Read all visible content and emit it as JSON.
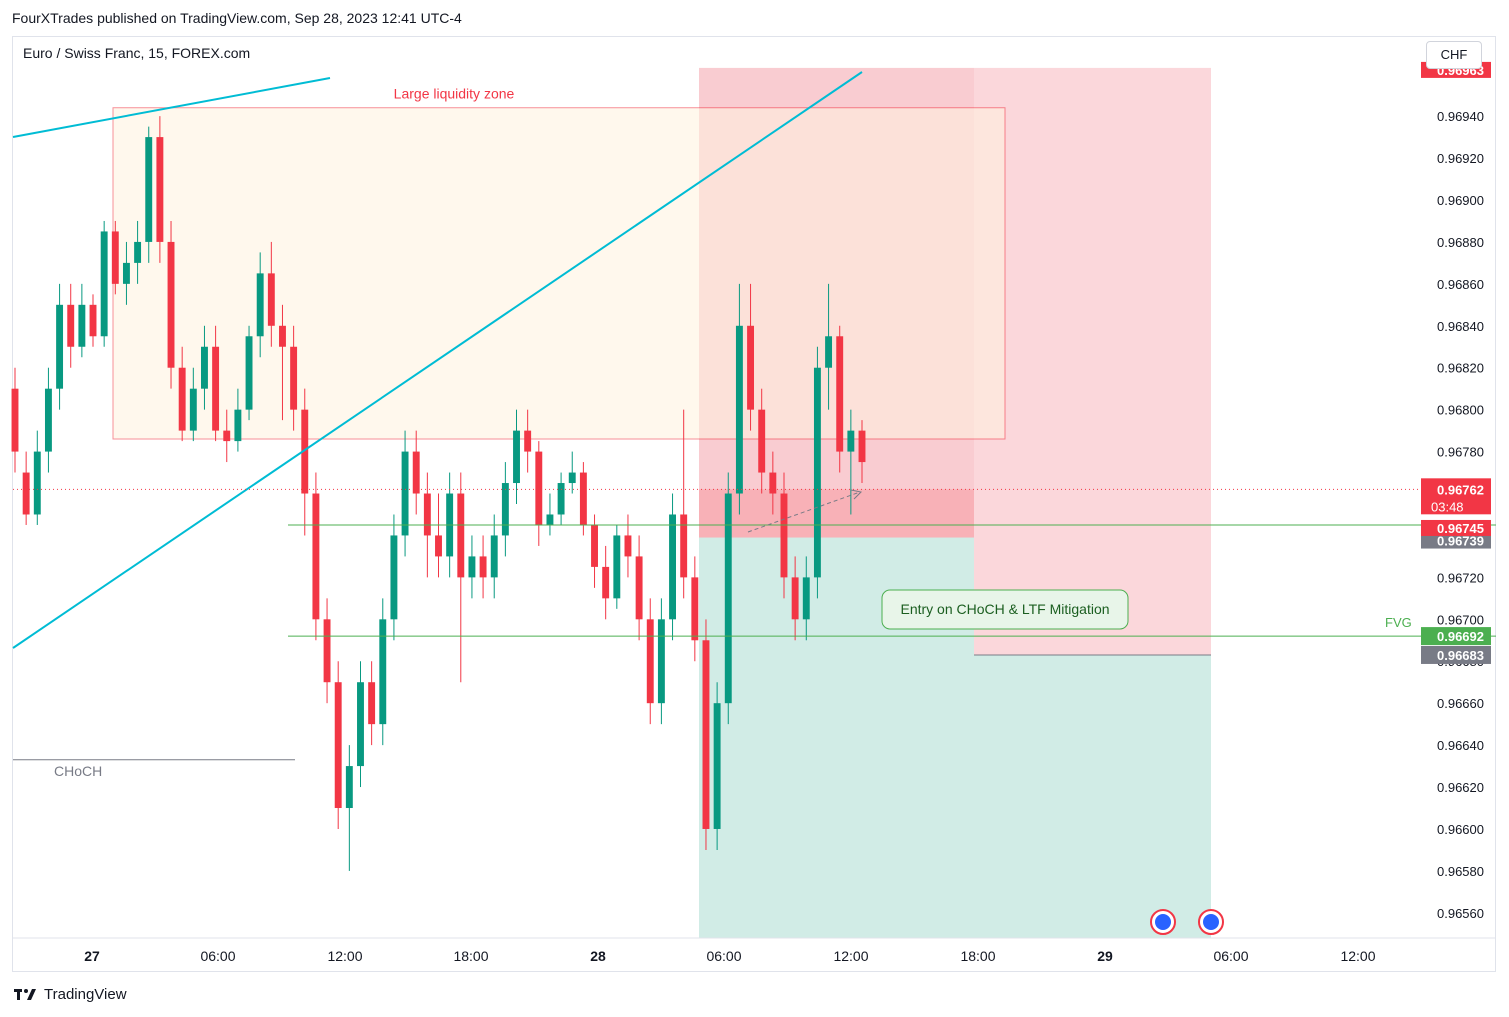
{
  "header": {
    "published": "FourXTrades published on TradingView.com, Sep 28, 2023 12:41 UTC-4",
    "symbol": "Euro / Swiss Franc, 15, FOREX.com",
    "currency": "CHF"
  },
  "footer": {
    "logo_icon": "tradingview-logo-icon",
    "brand": "TradingView"
  },
  "colors": {
    "up": "#089981",
    "down": "#f23645",
    "trendline": "#00bcd4",
    "zone_border": "#f23645",
    "zone_fill": "#fff3e0",
    "stop_fill": "#f7b6bd",
    "target_fill": "#b2dfd5",
    "fvg_line": "#4caf50"
  },
  "chart_data": {
    "type": "candlestick",
    "title": "Euro / Swiss Franc, 15, FOREX.com",
    "ylim": [
      0.96548,
      0.96962
    ],
    "y_ticks": [
      "0.96940",
      "0.96920",
      "0.96900",
      "0.96880",
      "0.96860",
      "0.96840",
      "0.96820",
      "0.96800",
      "0.96780",
      "0.96760",
      "0.96740",
      "0.96720",
      "0.96700",
      "0.96680",
      "0.96660",
      "0.96640",
      "0.96620",
      "0.96600",
      "0.96580",
      "0.96560"
    ],
    "x_ticks": [
      "27",
      "06:00",
      "12:00",
      "18:00",
      "28",
      "06:00",
      "12:00",
      "18:00",
      "29",
      "06:00",
      "12:00"
    ],
    "candles": [
      [
        0.9681,
        0.9678,
        0.9682,
        0.9677
      ],
      [
        0.9677,
        0.9675,
        0.9678,
        0.96745
      ],
      [
        0.9675,
        0.9678,
        0.9679,
        0.96745
      ],
      [
        0.9678,
        0.9681,
        0.9682,
        0.9677
      ],
      [
        0.9681,
        0.9685,
        0.9686,
        0.968
      ],
      [
        0.9685,
        0.9683,
        0.9686,
        0.9682
      ],
      [
        0.9683,
        0.9685,
        0.9686,
        0.96825
      ],
      [
        0.9685,
        0.96835,
        0.96855,
        0.9683
      ],
      [
        0.96835,
        0.96885,
        0.9689,
        0.9683
      ],
      [
        0.96885,
        0.9686,
        0.9689,
        0.96855
      ],
      [
        0.9686,
        0.9687,
        0.9688,
        0.9685
      ],
      [
        0.9687,
        0.9688,
        0.9689,
        0.9686
      ],
      [
        0.9688,
        0.9693,
        0.96935,
        0.9687
      ],
      [
        0.9693,
        0.9688,
        0.9694,
        0.9687
      ],
      [
        0.9688,
        0.9682,
        0.9689,
        0.9681
      ],
      [
        0.9682,
        0.9679,
        0.9683,
        0.96785
      ],
      [
        0.9679,
        0.9681,
        0.9682,
        0.96785
      ],
      [
        0.9681,
        0.9683,
        0.9684,
        0.968
      ],
      [
        0.9683,
        0.9679,
        0.9684,
        0.96785
      ],
      [
        0.9679,
        0.96785,
        0.968,
        0.96775
      ],
      [
        0.96785,
        0.968,
        0.9681,
        0.9678
      ],
      [
        0.968,
        0.96835,
        0.9684,
        0.96795
      ],
      [
        0.96835,
        0.96865,
        0.96875,
        0.96825
      ],
      [
        0.96865,
        0.9684,
        0.9688,
        0.9683
      ],
      [
        0.9684,
        0.9683,
        0.9685,
        0.96795
      ],
      [
        0.9683,
        0.968,
        0.9684,
        0.9679
      ],
      [
        0.968,
        0.9676,
        0.9681,
        0.9674
      ],
      [
        0.9676,
        0.967,
        0.9677,
        0.9669
      ],
      [
        0.967,
        0.9667,
        0.9671,
        0.9666
      ],
      [
        0.9667,
        0.9661,
        0.9668,
        0.966
      ],
      [
        0.9661,
        0.9663,
        0.9664,
        0.9658
      ],
      [
        0.9663,
        0.9667,
        0.9668,
        0.9662
      ],
      [
        0.9667,
        0.9665,
        0.9668,
        0.9664
      ],
      [
        0.9665,
        0.967,
        0.9671,
        0.9664
      ],
      [
        0.967,
        0.9674,
        0.9675,
        0.9669
      ],
      [
        0.9674,
        0.9678,
        0.9679,
        0.9673
      ],
      [
        0.9678,
        0.9676,
        0.9679,
        0.9675
      ],
      [
        0.9676,
        0.9674,
        0.9677,
        0.9672
      ],
      [
        0.9674,
        0.9673,
        0.9676,
        0.9672
      ],
      [
        0.9673,
        0.9676,
        0.9677,
        0.9672
      ],
      [
        0.9676,
        0.9672,
        0.9677,
        0.9667
      ],
      [
        0.9672,
        0.9673,
        0.9674,
        0.9671
      ],
      [
        0.9673,
        0.9672,
        0.9674,
        0.9671
      ],
      [
        0.9672,
        0.9674,
        0.9675,
        0.9671
      ],
      [
        0.9674,
        0.96765,
        0.96775,
        0.9673
      ],
      [
        0.96765,
        0.9679,
        0.968,
        0.96755
      ],
      [
        0.9679,
        0.9678,
        0.968,
        0.9677
      ],
      [
        0.9678,
        0.96745,
        0.96785,
        0.96735
      ],
      [
        0.96745,
        0.9675,
        0.9676,
        0.9674
      ],
      [
        0.9675,
        0.96765,
        0.9677,
        0.96745
      ],
      [
        0.96765,
        0.9677,
        0.9678,
        0.9676
      ],
      [
        0.9677,
        0.96745,
        0.96775,
        0.9674
      ],
      [
        0.96745,
        0.96725,
        0.9675,
        0.96715
      ],
      [
        0.96725,
        0.9671,
        0.96735,
        0.967
      ],
      [
        0.9671,
        0.9674,
        0.96745,
        0.96705
      ],
      [
        0.9674,
        0.9673,
        0.9675,
        0.9672
      ],
      [
        0.9673,
        0.967,
        0.9674,
        0.9669
      ],
      [
        0.967,
        0.9666,
        0.9671,
        0.9665
      ],
      [
        0.9666,
        0.967,
        0.9671,
        0.9665
      ],
      [
        0.967,
        0.9675,
        0.9676,
        0.9669
      ],
      [
        0.9675,
        0.9672,
        0.968,
        0.9671
      ],
      [
        0.9672,
        0.9669,
        0.9673,
        0.9668
      ],
      [
        0.9669,
        0.966,
        0.967,
        0.9659
      ],
      [
        0.966,
        0.9666,
        0.9667,
        0.9659
      ],
      [
        0.9666,
        0.9676,
        0.9677,
        0.9665
      ],
      [
        0.9676,
        0.9684,
        0.9686,
        0.9675
      ],
      [
        0.9684,
        0.968,
        0.9686,
        0.9679
      ],
      [
        0.968,
        0.9677,
        0.9681,
        0.9676
      ],
      [
        0.9677,
        0.9676,
        0.9678,
        0.9675
      ],
      [
        0.9676,
        0.9672,
        0.9677,
        0.9671
      ],
      [
        0.9672,
        0.967,
        0.9673,
        0.9669
      ],
      [
        0.967,
        0.9672,
        0.9673,
        0.9669
      ],
      [
        0.9672,
        0.9682,
        0.9683,
        0.9671
      ],
      [
        0.9682,
        0.96835,
        0.9686,
        0.968
      ],
      [
        0.96835,
        0.9678,
        0.9684,
        0.9677
      ],
      [
        0.9678,
        0.9679,
        0.968,
        0.9675
      ],
      [
        0.9679,
        0.96775,
        0.96795,
        0.96765
      ]
    ],
    "price_labels": {
      "top_stop": "0.96963",
      "current": "0.96762",
      "countdown": "03:48",
      "entry": "0.96745",
      "entry2": "0.96739",
      "fvg": "0.96692",
      "target": "0.96683"
    },
    "annotations": {
      "zone_label": "Large liquidity zone",
      "choch_label": "CHoCH",
      "entry_label": "Entry on CHoCH & LTF Mitigation",
      "fvg_label": "FVG"
    },
    "levels": {
      "zone_top": 0.96944,
      "zone_bottom": 0.96786,
      "stop": 0.96963,
      "entry": 0.96739,
      "current": 0.96762,
      "fvg": 0.96692,
      "choch": 0.96633,
      "target": 0.96683,
      "entry_line": 0.96745
    }
  }
}
